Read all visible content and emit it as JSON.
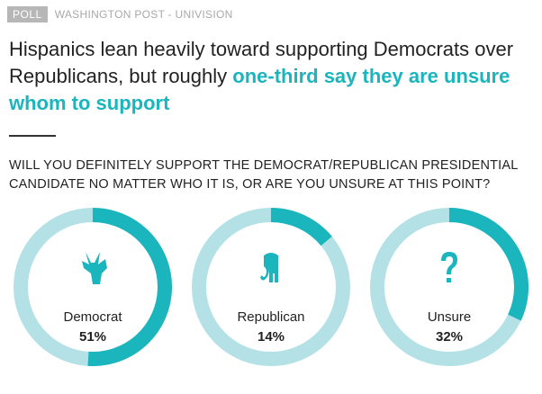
{
  "header": {
    "badge": "POLL",
    "source": "WASHINGTON POST - UNIVISION"
  },
  "headline": {
    "plain": "Hispanics lean heavily toward supporting Democrats over Republicans, but roughly ",
    "highlight": "one-third say they are unsure whom to support"
  },
  "question": "WILL YOU DEFINITELY SUPPORT THE DEMOCRAT/REPUBLICAN PRESIDENTIAL CANDIDATE NO MATTER WHO IT IS, OR ARE YOU UNSURE AT THIS POINT?",
  "colors": {
    "accent": "#1ab5bd",
    "track": "#b3e1e5"
  },
  "chart_data": {
    "type": "pie",
    "charts": [
      {
        "label": "Democrat",
        "value": 51,
        "value_label": "51%",
        "icon": "donkey-icon"
      },
      {
        "label": "Republican",
        "value": 14,
        "value_label": "14%",
        "icon": "elephant-icon"
      },
      {
        "label": "Unsure",
        "value": 32,
        "value_label": "32%",
        "icon": "question-mark-icon"
      }
    ]
  }
}
